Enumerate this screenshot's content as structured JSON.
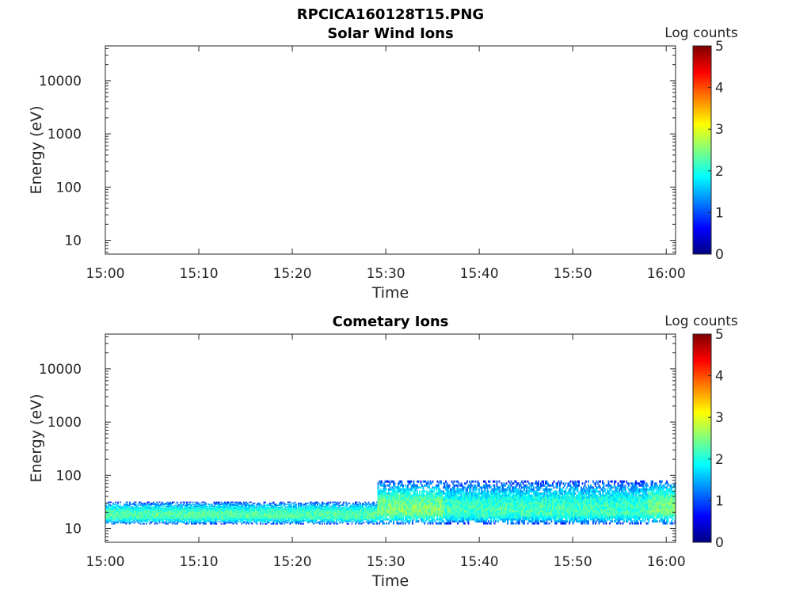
{
  "figure": {
    "title": "RPCICA160128T15.PNG"
  },
  "chart_data": [
    {
      "type": "heatmap",
      "title": "Solar Wind Ions",
      "xlabel": "Time",
      "ylabel": "Energy (eV)",
      "x_ticks": [
        "15:00",
        "15:10",
        "15:20",
        "15:30",
        "15:40",
        "15:50",
        "16:00"
      ],
      "x_range_minutes": [
        0,
        61
      ],
      "y_scale": "log",
      "y_range": [
        5.5,
        45000
      ],
      "y_ticks": [
        10,
        100,
        1000,
        10000
      ],
      "colorbar": {
        "label": "Log counts",
        "range": [
          0,
          5
        ],
        "ticks": [
          0,
          1,
          2,
          3,
          4,
          5
        ],
        "colormap": "jet"
      },
      "data_summary": "empty — no counts recorded"
    },
    {
      "type": "heatmap",
      "title": "Cometary Ions",
      "xlabel": "Time",
      "ylabel": "Energy (eV)",
      "x_ticks": [
        "15:00",
        "15:10",
        "15:20",
        "15:30",
        "15:40",
        "15:50",
        "16:00"
      ],
      "x_range_minutes": [
        0,
        61
      ],
      "y_scale": "log",
      "y_range": [
        5.5,
        45000
      ],
      "y_ticks": [
        10,
        100,
        1000,
        10000
      ],
      "colorbar": {
        "label": "Log counts",
        "range": [
          0,
          5
        ],
        "ticks": [
          0,
          1,
          2,
          3,
          4,
          5
        ],
        "colormap": "jet"
      },
      "bands": [
        {
          "t_start_min": 0,
          "t_end_min": 29,
          "e_min_ev": 12,
          "e_max_ev": 32,
          "peak_ev": 18,
          "peak_log_counts": 2.3
        },
        {
          "t_start_min": 29,
          "t_end_min": 36,
          "e_min_ev": 12,
          "e_max_ev": 80,
          "peak_ev": 22,
          "peak_log_counts": 2.5
        },
        {
          "t_start_min": 36,
          "t_end_min": 58,
          "e_min_ev": 12,
          "e_max_ev": 80,
          "peak_ev": 21,
          "peak_log_counts": 2.2
        },
        {
          "t_start_min": 58,
          "t_end_min": 61,
          "e_min_ev": 12,
          "e_max_ev": 80,
          "peak_ev": 25,
          "peak_log_counts": 2.5
        }
      ]
    }
  ]
}
